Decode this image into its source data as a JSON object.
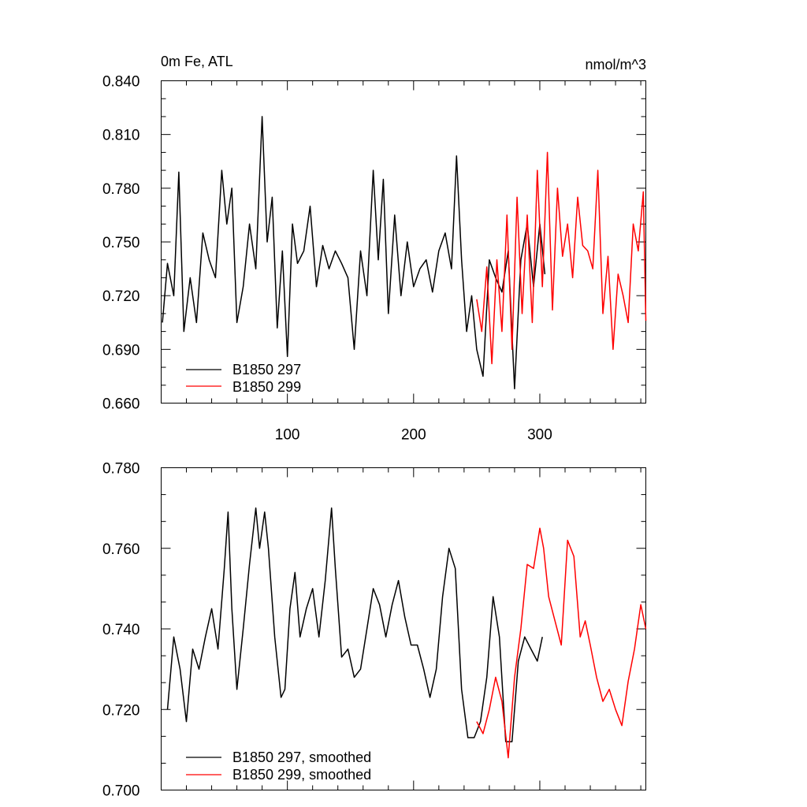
{
  "chart_data": [
    {
      "type": "line",
      "title_left": "0m Fe, ATL",
      "title_right": "nmol/m^3",
      "xlabel": "",
      "ylabel": "",
      "xlim": [
        0,
        384
      ],
      "ylim": [
        0.66,
        0.84
      ],
      "x_ticks": [
        100,
        200,
        300
      ],
      "x_tick_labels": [
        "100",
        "200",
        "300"
      ],
      "y_ticks": [
        0.66,
        0.69,
        0.72,
        0.75,
        0.78,
        0.81,
        0.84
      ],
      "y_tick_labels": [
        "0.660",
        "0.690",
        "0.720",
        "0.750",
        "0.780",
        "0.810",
        "0.840"
      ],
      "legend_position": "bottom-left",
      "series": [
        {
          "name": "B1850 297",
          "color": "#000000",
          "x": [
            1,
            5,
            10,
            14,
            18,
            23,
            28,
            33,
            38,
            43,
            48,
            52,
            56,
            60,
            65,
            70,
            75,
            80,
            84,
            88,
            92,
            96,
            100,
            104,
            108,
            113,
            118,
            123,
            128,
            133,
            138,
            143,
            148,
            153,
            158,
            163,
            168,
            172,
            176,
            180,
            185,
            190,
            195,
            200,
            205,
            210,
            215,
            220,
            225,
            230,
            234,
            238,
            242,
            246,
            250,
            255,
            260,
            265,
            270,
            275,
            280,
            285,
            290,
            295,
            300,
            304
          ],
          "values": [
            0.705,
            0.738,
            0.72,
            0.789,
            0.7,
            0.73,
            0.705,
            0.755,
            0.74,
            0.73,
            0.79,
            0.76,
            0.78,
            0.705,
            0.725,
            0.76,
            0.735,
            0.82,
            0.75,
            0.775,
            0.702,
            0.745,
            0.686,
            0.76,
            0.738,
            0.745,
            0.77,
            0.725,
            0.748,
            0.735,
            0.745,
            0.738,
            0.73,
            0.69,
            0.745,
            0.72,
            0.79,
            0.74,
            0.785,
            0.71,
            0.765,
            0.72,
            0.75,
            0.725,
            0.735,
            0.74,
            0.722,
            0.745,
            0.755,
            0.735,
            0.798,
            0.74,
            0.7,
            0.72,
            0.69,
            0.675,
            0.74,
            0.73,
            0.722,
            0.745,
            0.668,
            0.74,
            0.76,
            0.725,
            0.76,
            0.732
          ]
        },
        {
          "name": "B1850 299",
          "color": "#ff0000",
          "x": [
            250,
            254,
            258,
            262,
            266,
            270,
            274,
            278,
            282,
            286,
            290,
            294,
            298,
            302,
            306,
            310,
            314,
            318,
            322,
            326,
            330,
            334,
            338,
            342,
            346,
            350,
            354,
            358,
            362,
            366,
            370,
            374,
            378,
            382,
            384
          ],
          "values": [
            0.718,
            0.7,
            0.736,
            0.682,
            0.74,
            0.7,
            0.765,
            0.69,
            0.775,
            0.71,
            0.765,
            0.705,
            0.79,
            0.725,
            0.8,
            0.712,
            0.78,
            0.742,
            0.76,
            0.73,
            0.775,
            0.748,
            0.745,
            0.735,
            0.79,
            0.71,
            0.742,
            0.69,
            0.732,
            0.72,
            0.705,
            0.76,
            0.745,
            0.778,
            0.706
          ]
        }
      ]
    },
    {
      "type": "line",
      "title_left": "",
      "title_right": "",
      "xlabel": "",
      "ylabel": "",
      "xlim": [
        0,
        384
      ],
      "ylim": [
        0.7,
        0.78
      ],
      "x_ticks": [
        100,
        200,
        300
      ],
      "x_tick_labels": [],
      "y_ticks": [
        0.7,
        0.72,
        0.74,
        0.76,
        0.78
      ],
      "y_tick_labels": [
        "0.700",
        "0.720",
        "0.740",
        "0.760",
        "0.780"
      ],
      "legend_position": "bottom-left",
      "series": [
        {
          "name": "B1850 297, smoothed",
          "color": "#000000",
          "x": [
            5,
            10,
            15,
            20,
            25,
            30,
            35,
            40,
            45,
            50,
            53,
            56,
            60,
            65,
            70,
            75,
            78,
            82,
            85,
            90,
            95,
            98,
            102,
            106,
            110,
            115,
            120,
            125,
            130,
            135,
            138,
            143,
            148,
            153,
            158,
            163,
            168,
            173,
            178,
            183,
            188,
            193,
            198,
            203,
            208,
            213,
            218,
            223,
            228,
            233,
            238,
            243,
            248,
            253,
            258,
            263,
            268,
            273,
            278,
            283,
            288,
            293,
            298,
            302
          ],
          "values": [
            0.72,
            0.738,
            0.73,
            0.717,
            0.735,
            0.73,
            0.738,
            0.745,
            0.735,
            0.755,
            0.769,
            0.745,
            0.725,
            0.74,
            0.756,
            0.77,
            0.76,
            0.769,
            0.76,
            0.738,
            0.723,
            0.725,
            0.745,
            0.754,
            0.738,
            0.745,
            0.75,
            0.738,
            0.752,
            0.77,
            0.755,
            0.733,
            0.735,
            0.728,
            0.73,
            0.74,
            0.75,
            0.746,
            0.738,
            0.746,
            0.752,
            0.743,
            0.736,
            0.736,
            0.73,
            0.723,
            0.73,
            0.748,
            0.76,
            0.755,
            0.725,
            0.713,
            0.713,
            0.717,
            0.728,
            0.748,
            0.738,
            0.712,
            0.712,
            0.732,
            0.738,
            0.735,
            0.732,
            0.738
          ]
        },
        {
          "name": "B1850 299, smoothed",
          "color": "#ff0000",
          "x": [
            250,
            255,
            260,
            265,
            270,
            275,
            280,
            285,
            290,
            295,
            300,
            303,
            307,
            312,
            317,
            322,
            327,
            332,
            336,
            340,
            345,
            350,
            355,
            360,
            365,
            370,
            375,
            380,
            384
          ],
          "values": [
            0.717,
            0.714,
            0.72,
            0.728,
            0.722,
            0.708,
            0.728,
            0.74,
            0.756,
            0.755,
            0.765,
            0.76,
            0.748,
            0.742,
            0.736,
            0.762,
            0.758,
            0.738,
            0.742,
            0.736,
            0.728,
            0.722,
            0.725,
            0.72,
            0.716,
            0.727,
            0.735,
            0.746,
            0.74
          ]
        }
      ]
    }
  ]
}
